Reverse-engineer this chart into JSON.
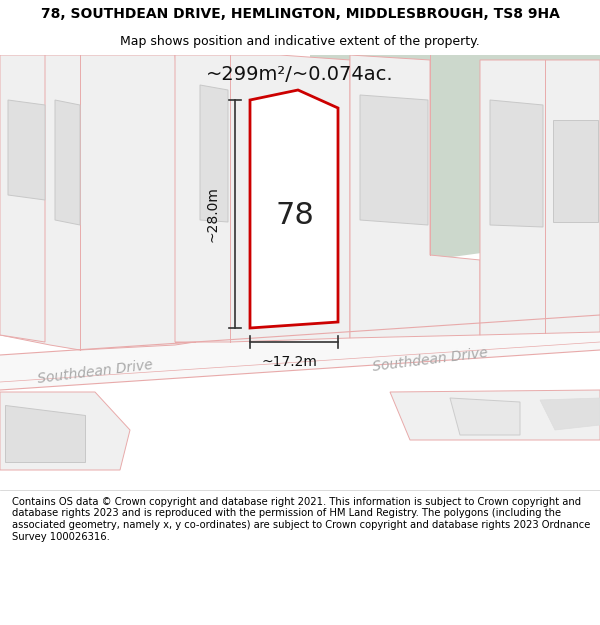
{
  "title": "78, SOUTHDEAN DRIVE, HEMLINGTON, MIDDLESBROUGH, TS8 9HA",
  "subtitle": "Map shows position and indicative extent of the property.",
  "area_label": "~299m²/~0.074ac.",
  "house_number": "78",
  "dim_width": "~17.2m",
  "dim_height": "~28.0m",
  "street_label_left": "Southdean Drive",
  "street_label_right": "Southdean Drive",
  "footer": "Contains OS data © Crown copyright and database right 2021. This information is subject to Crown copyright and database rights 2023 and is reproduced with the permission of HM Land Registry. The polygons (including the associated geometry, namely x, y co-ordinates) are subject to Crown copyright and database rights 2023 Ordnance Survey 100026316.",
  "bg_map_color": "#f5f5f5",
  "bg_green_color": "#ccd8cc",
  "road_fill_color": "#f8f8f8",
  "road_line_color": "#e8aaaa",
  "building_fill": "#e0e0e0",
  "building_outline": "#c8c8c8",
  "plot_fill": "#f0f0f0",
  "plot_outline": "#e8aaaa",
  "property_fill": "#ffffff",
  "property_outline": "#cc0000",
  "dim_line_color": "#333333",
  "title_fontsize": 10,
  "subtitle_fontsize": 9,
  "footer_fontsize": 7.5
}
